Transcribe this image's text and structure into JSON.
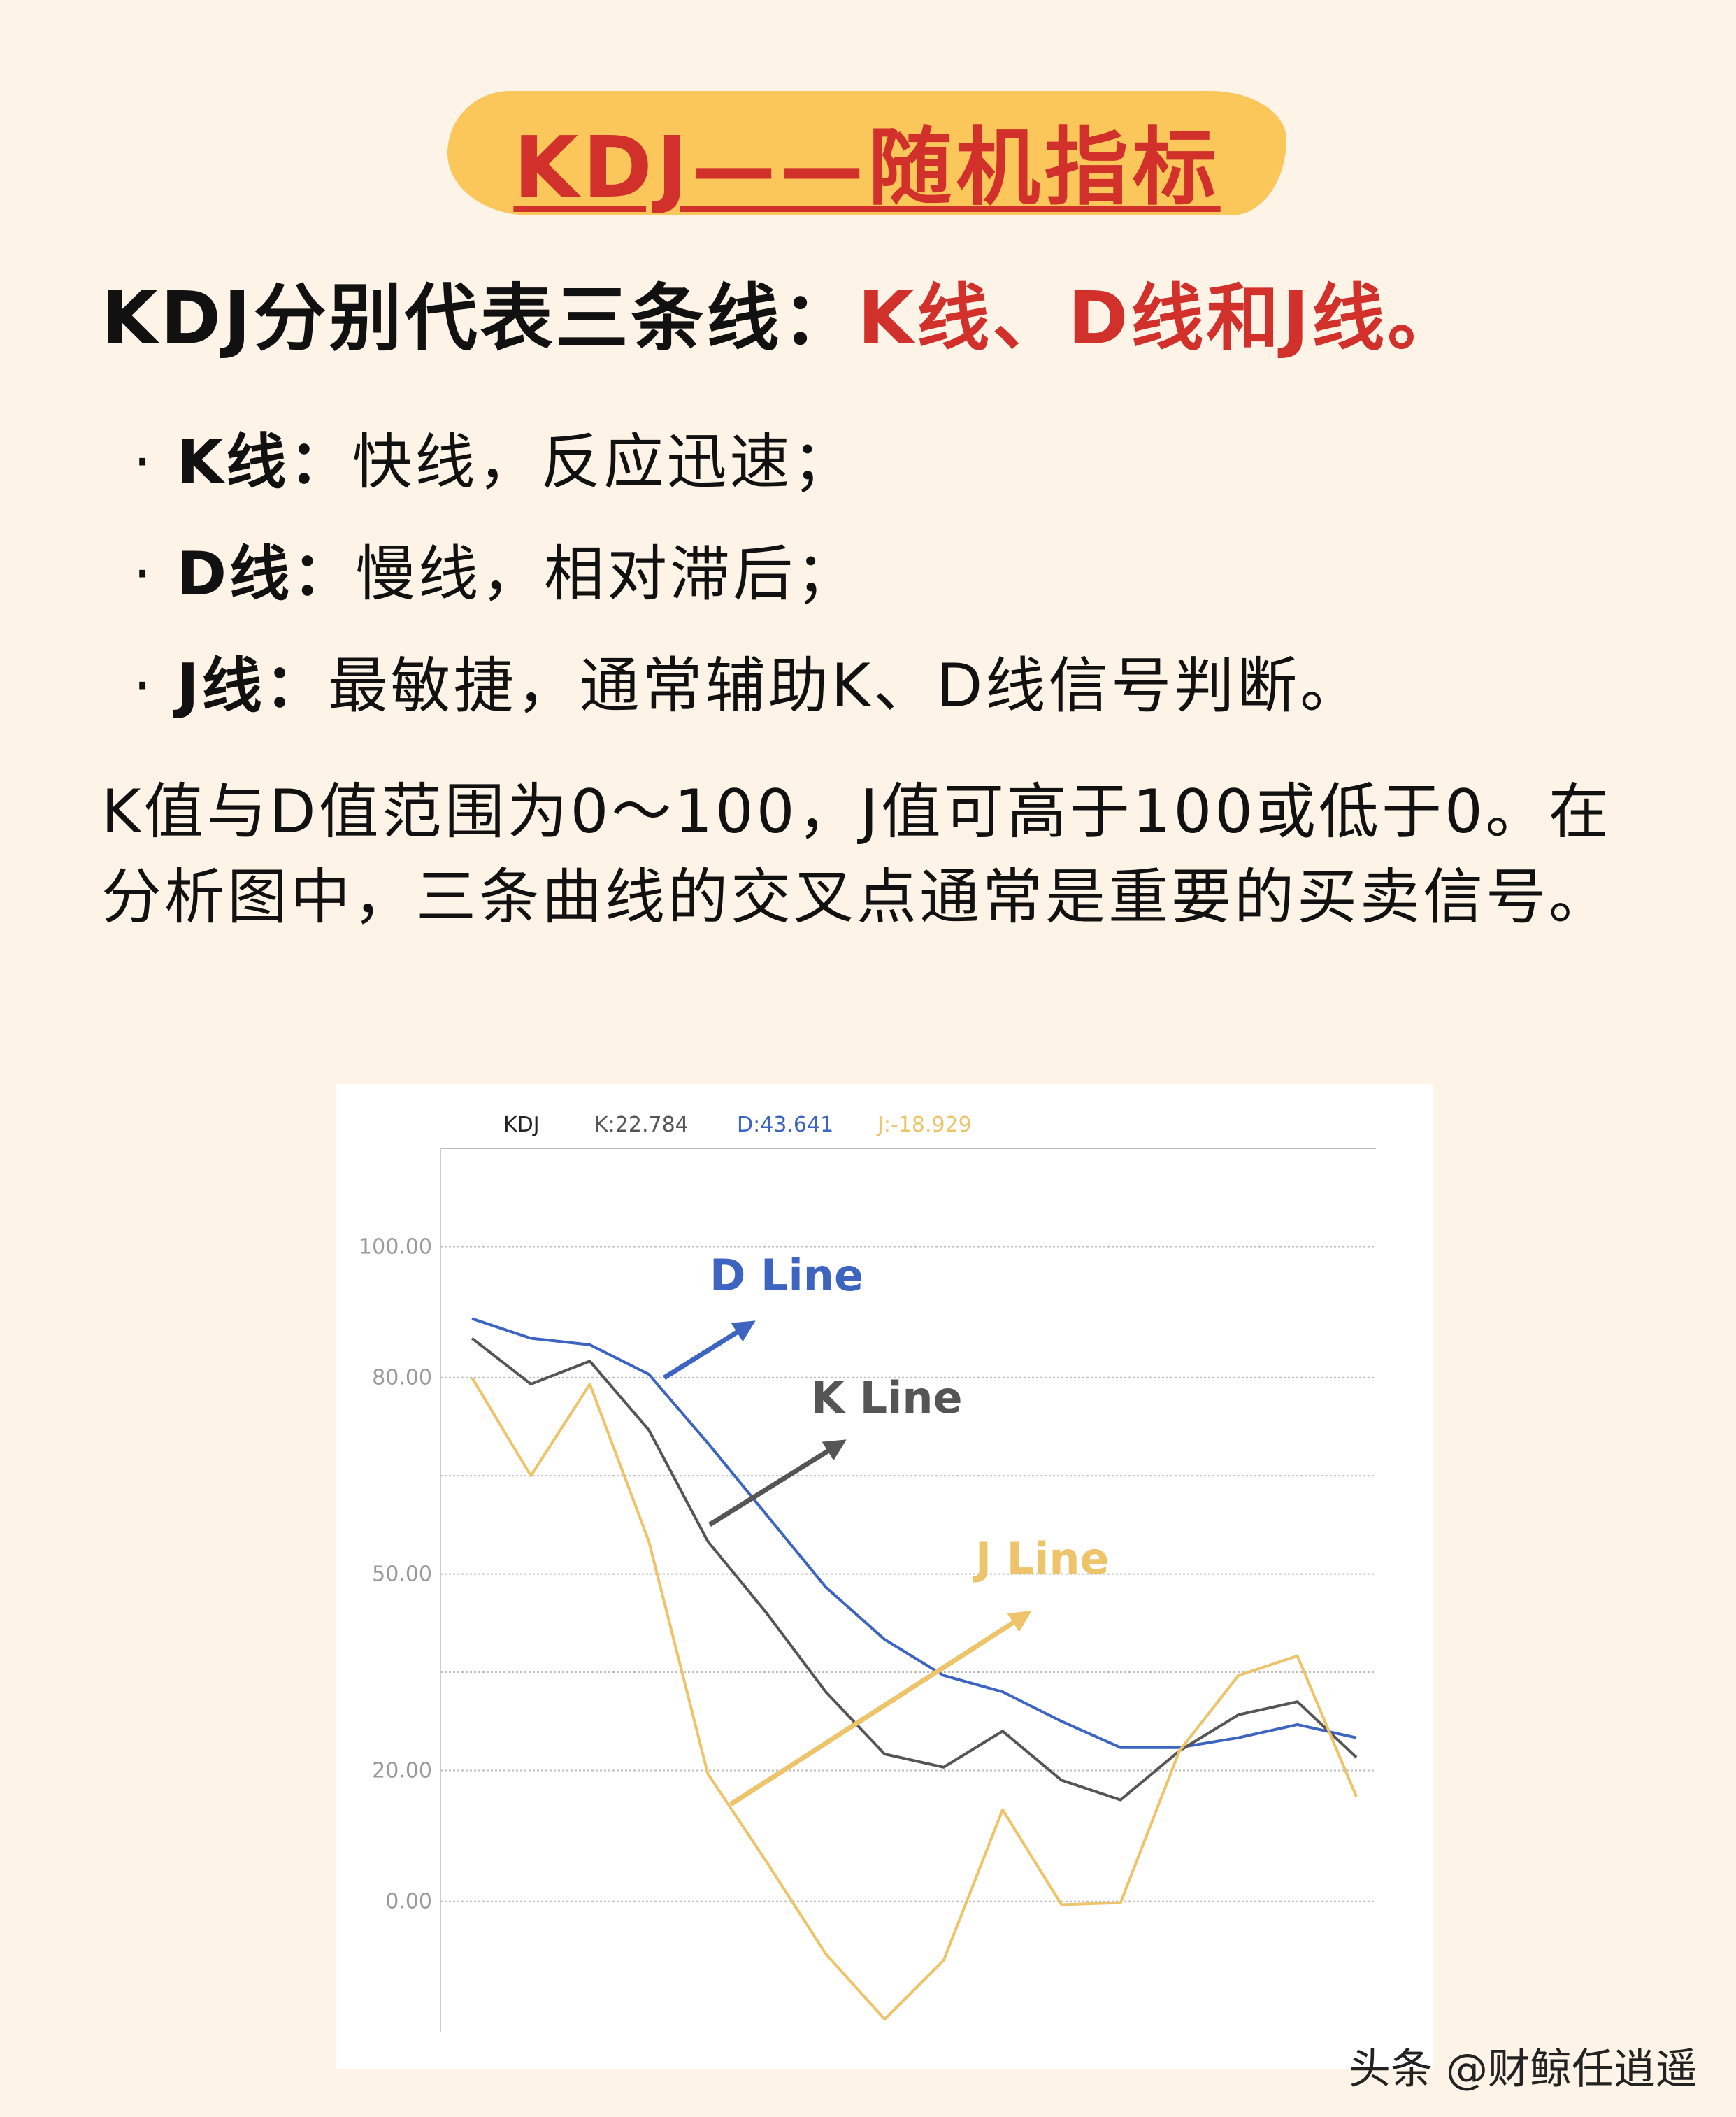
{
  "title": "KDJ——随机指标",
  "headline": {
    "prefix": "KDJ分别代表三条线：",
    "highlight": "K线、D线和J线。"
  },
  "bullets": [
    {
      "dot": "·",
      "key": "K线：",
      "text": "快线，反应迅速；"
    },
    {
      "dot": "·",
      "key": "D线：",
      "text": "慢线，相对滞后；"
    },
    {
      "dot": "·",
      "key": "J线：",
      "text": "最敏捷，通常辅助K、D线信号判断。"
    }
  ],
  "paragraph": "K值与D值范围为0～100，J值可高于100或低于0。在分析图中，三条曲线的交叉点通常是重要的买卖信号。",
  "watermark": "头条 @财鲸任逍遥",
  "colors": {
    "k": "#555555",
    "d": "#3c64c0",
    "j": "#eec46a",
    "accent": "#d2302b",
    "title_bg": "#fbc65a"
  },
  "chart_data": {
    "type": "line",
    "header": {
      "name": "KDJ",
      "k": "K:22.784",
      "d": "D:43.641",
      "j": "J:-18.929"
    },
    "y_ticks": [
      "100.00",
      "80.00",
      "50.00",
      "20.00",
      "0.00"
    ],
    "y_tick_values": [
      100,
      80,
      50,
      20,
      0
    ],
    "ylim": [
      -20,
      115
    ],
    "x": [
      0,
      1,
      2,
      3,
      4,
      5,
      6,
      7,
      8,
      9,
      10,
      11,
      12,
      13,
      14,
      15
    ],
    "series": [
      {
        "name": "D Line",
        "key": "d",
        "values": [
          89,
          86,
          85,
          80.5,
          70,
          59,
          48,
          40,
          34.5,
          32,
          27.5,
          23.5,
          23.5,
          25,
          27,
          25
        ]
      },
      {
        "name": "K Line",
        "key": "k",
        "values": [
          86,
          79,
          82.5,
          72,
          55,
          44,
          32,
          22.5,
          20.5,
          26,
          18.5,
          15.5,
          23,
          28.5,
          30.5,
          22
        ]
      },
      {
        "name": "J Line",
        "key": "j",
        "values": [
          80,
          65,
          79,
          55,
          19.5,
          6,
          -8,
          -18,
          -9,
          14,
          -0.5,
          -0.2,
          23,
          34.5,
          37.5,
          16
        ]
      }
    ],
    "annotations": [
      {
        "label": "D Line",
        "key": "d"
      },
      {
        "label": "K Line",
        "key": "k"
      },
      {
        "label": "J Line",
        "key": "j"
      }
    ]
  }
}
